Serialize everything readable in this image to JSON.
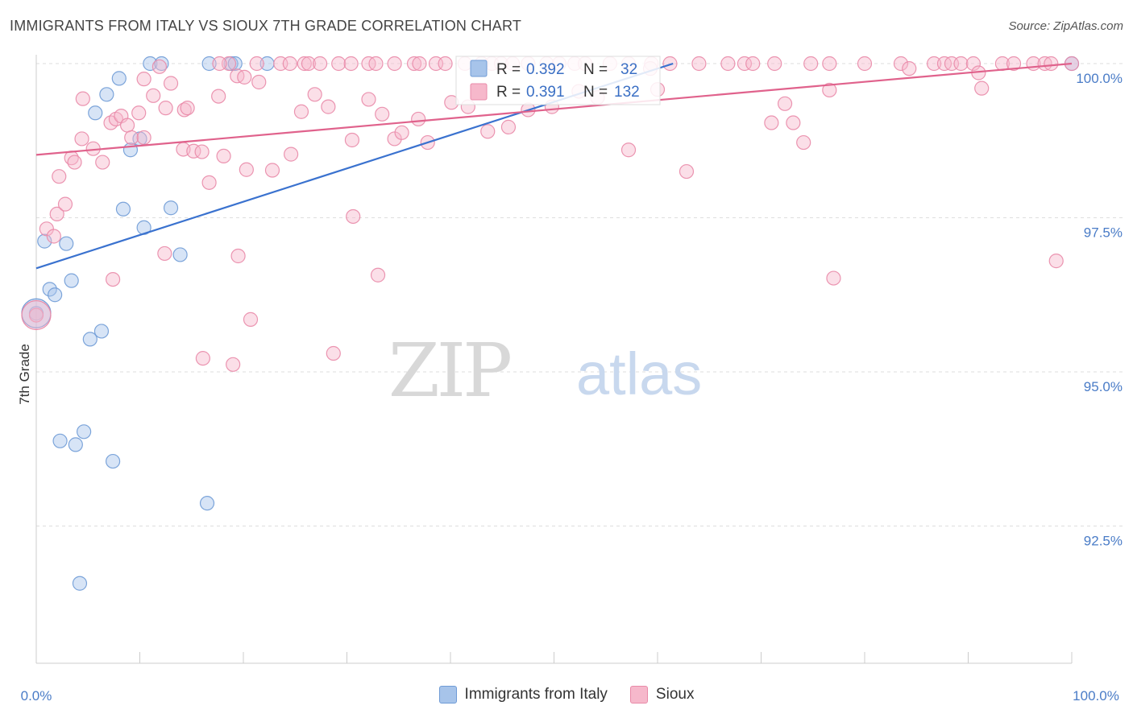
{
  "header": {
    "title": "IMMIGRANTS FROM ITALY VS SIOUX 7TH GRADE CORRELATION CHART",
    "source": "Source: ZipAtlas.com"
  },
  "watermark": {
    "zip": "ZIP",
    "atlas": "atlas"
  },
  "chart_data": {
    "type": "scatter",
    "title": "IMMIGRANTS FROM ITALY VS SIOUX 7TH GRADE CORRELATION CHART",
    "xlabel": "",
    "ylabel": "7th Grade",
    "xlim": [
      0,
      100
    ],
    "ylim": [
      90.0,
      100.5
    ],
    "x_tick_labels": [
      "0.0%",
      "100.0%"
    ],
    "y_ticks": [
      {
        "value": 100.0,
        "label": "100.0%"
      },
      {
        "value": 97.5,
        "label": "97.5%"
      },
      {
        "value": 95.0,
        "label": "95.0%"
      },
      {
        "value": 92.5,
        "label": "92.5%"
      }
    ],
    "legend_stats": [
      {
        "r_label": "R =",
        "r_value": "0.392",
        "n_label": "N =",
        "n_value": "32"
      },
      {
        "r_label": "R =",
        "r_value": "0.391",
        "n_label": "N =",
        "n_value": "132"
      }
    ],
    "series": [
      {
        "name": "Immigrants from Italy",
        "color": "#a7c4ea",
        "stroke": "#6f9bd6",
        "line_color": "#3a72cf",
        "trend": {
          "x0": 0,
          "y0": 96.68,
          "x1": 61.5,
          "y1": 100.0
        },
        "points": [
          [
            11,
            100.0
          ],
          [
            12.1,
            100.0
          ],
          [
            16.7,
            100.0
          ],
          [
            18.8,
            100.0
          ],
          [
            19.2,
            100.0
          ],
          [
            22.3,
            100.0
          ],
          [
            100.0,
            100.0
          ],
          [
            8.0,
            99.76
          ],
          [
            6.8,
            99.5
          ],
          [
            5.7,
            99.2
          ],
          [
            9.1,
            98.6
          ],
          [
            10.0,
            98.78
          ],
          [
            8.4,
            97.64
          ],
          [
            10.4,
            97.34
          ],
          [
            13.0,
            97.66
          ],
          [
            13.9,
            96.9
          ],
          [
            0.8,
            97.12
          ],
          [
            2.9,
            97.08
          ],
          [
            1.3,
            96.34
          ],
          [
            1.8,
            96.25
          ],
          [
            3.4,
            96.48
          ],
          [
            0.0,
            95.95
          ],
          [
            6.3,
            95.66
          ],
          [
            5.2,
            95.53
          ],
          [
            2.3,
            93.88
          ],
          [
            3.8,
            93.82
          ],
          [
            4.6,
            94.03
          ],
          [
            7.4,
            93.55
          ],
          [
            16.5,
            92.87
          ],
          [
            4.2,
            91.57
          ]
        ],
        "big_point": [
          0.0,
          95.95
        ]
      },
      {
        "name": "Sioux",
        "color": "#f6b8cb",
        "stroke": "#e98aa8",
        "line_color": "#e0628c",
        "trend": {
          "x0": 0,
          "y0": 98.52,
          "x1": 100,
          "y1": 100.0
        },
        "points": [
          [
            18.6,
            100.0
          ],
          [
            17.7,
            100.0
          ],
          [
            21.3,
            100.0
          ],
          [
            23.6,
            100.0
          ],
          [
            24.5,
            100.0
          ],
          [
            25.9,
            100.0
          ],
          [
            26.3,
            100.0
          ],
          [
            27.4,
            100.0
          ],
          [
            29.2,
            100.0
          ],
          [
            30.4,
            100.0
          ],
          [
            32.1,
            100.0
          ],
          [
            32.8,
            100.0
          ],
          [
            34.6,
            100.0
          ],
          [
            36.5,
            100.0
          ],
          [
            37.0,
            100.0
          ],
          [
            38.6,
            100.0
          ],
          [
            39.5,
            100.0
          ],
          [
            41.4,
            100.0
          ],
          [
            43.0,
            100.0
          ],
          [
            44.0,
            100.0
          ],
          [
            44.9,
            100.0
          ],
          [
            46.0,
            100.0
          ],
          [
            47.5,
            100.0
          ],
          [
            49.3,
            100.0
          ],
          [
            50.5,
            100.0
          ],
          [
            52.0,
            100.0
          ],
          [
            53.0,
            100.0
          ],
          [
            55.4,
            100.0
          ],
          [
            57.2,
            100.0
          ],
          [
            59.4,
            100.0
          ],
          [
            61.2,
            100.0
          ],
          [
            64.0,
            100.0
          ],
          [
            66.8,
            100.0
          ],
          [
            68.4,
            100.0
          ],
          [
            69.2,
            100.0
          ],
          [
            71.3,
            100.0
          ],
          [
            74.8,
            100.0
          ],
          [
            76.6,
            100.0
          ],
          [
            80.0,
            100.0
          ],
          [
            83.5,
            100.0
          ],
          [
            86.7,
            100.0
          ],
          [
            87.7,
            100.0
          ],
          [
            88.4,
            100.0
          ],
          [
            89.3,
            100.0
          ],
          [
            90.5,
            100.0
          ],
          [
            93.3,
            100.0
          ],
          [
            94.4,
            100.0
          ],
          [
            96.3,
            100.0
          ],
          [
            97.4,
            100.0
          ],
          [
            98.0,
            100.0
          ],
          [
            100.0,
            100.0
          ],
          [
            1.0,
            97.32
          ],
          [
            1.7,
            97.2
          ],
          [
            2.0,
            97.56
          ],
          [
            2.8,
            97.72
          ],
          [
            2.2,
            98.17
          ],
          [
            3.4,
            98.47
          ],
          [
            3.7,
            98.4
          ],
          [
            4.4,
            98.78
          ],
          [
            4.5,
            99.43
          ],
          [
            5.5,
            98.62
          ],
          [
            6.4,
            98.4
          ],
          [
            7.2,
            99.04
          ],
          [
            7.7,
            99.1
          ],
          [
            8.2,
            99.15
          ],
          [
            8.8,
            99.0
          ],
          [
            9.2,
            98.8
          ],
          [
            9.9,
            99.2
          ],
          [
            10.4,
            98.8
          ],
          [
            10.4,
            99.75
          ],
          [
            11.3,
            99.48
          ],
          [
            11.9,
            99.95
          ],
          [
            12.5,
            99.28
          ],
          [
            13.0,
            99.68
          ],
          [
            14.2,
            98.61
          ],
          [
            14.3,
            99.25
          ],
          [
            14.6,
            99.28
          ],
          [
            15.2,
            98.58
          ],
          [
            16.0,
            98.57
          ],
          [
            16.7,
            98.07
          ],
          [
            17.6,
            99.47
          ],
          [
            18.1,
            98.5
          ],
          [
            19.4,
            99.8
          ],
          [
            20.1,
            99.78
          ],
          [
            20.3,
            98.28
          ],
          [
            21.5,
            99.7
          ],
          [
            22.8,
            98.27
          ],
          [
            24.6,
            98.53
          ],
          [
            25.6,
            99.22
          ],
          [
            26.9,
            99.5
          ],
          [
            28.2,
            99.3
          ],
          [
            30.5,
            98.76
          ],
          [
            32.1,
            99.42
          ],
          [
            33.4,
            99.18
          ],
          [
            34.6,
            98.78
          ],
          [
            35.3,
            98.88
          ],
          [
            36.9,
            99.1
          ],
          [
            37.8,
            98.72
          ],
          [
            40.1,
            99.37
          ],
          [
            41.7,
            99.3
          ],
          [
            43.6,
            98.9
          ],
          [
            45.6,
            98.97
          ],
          [
            47.5,
            99.25
          ],
          [
            49.8,
            99.3
          ],
          [
            52.4,
            99.55
          ],
          [
            54.2,
            99.45
          ],
          [
            57.2,
            98.6
          ],
          [
            59.3,
            99.92
          ],
          [
            60.0,
            99.58
          ],
          [
            62.8,
            98.25
          ],
          [
            71.0,
            99.04
          ],
          [
            72.3,
            99.35
          ],
          [
            73.1,
            99.04
          ],
          [
            74.1,
            98.72
          ],
          [
            76.6,
            99.57
          ],
          [
            84.3,
            99.92
          ],
          [
            91.0,
            99.85
          ],
          [
            91.3,
            99.6
          ],
          [
            98.5,
            96.8
          ],
          [
            7.4,
            96.5
          ],
          [
            12.4,
            96.92
          ],
          [
            19.5,
            96.88
          ],
          [
            20.7,
            95.85
          ],
          [
            16.1,
            95.22
          ],
          [
            19.0,
            95.12
          ],
          [
            28.7,
            95.3
          ],
          [
            30.6,
            97.52
          ],
          [
            33.0,
            96.57
          ],
          [
            77.0,
            96.52
          ],
          [
            0.0,
            95.92
          ]
        ],
        "big_point": [
          0.0,
          95.92
        ]
      }
    ]
  }
}
